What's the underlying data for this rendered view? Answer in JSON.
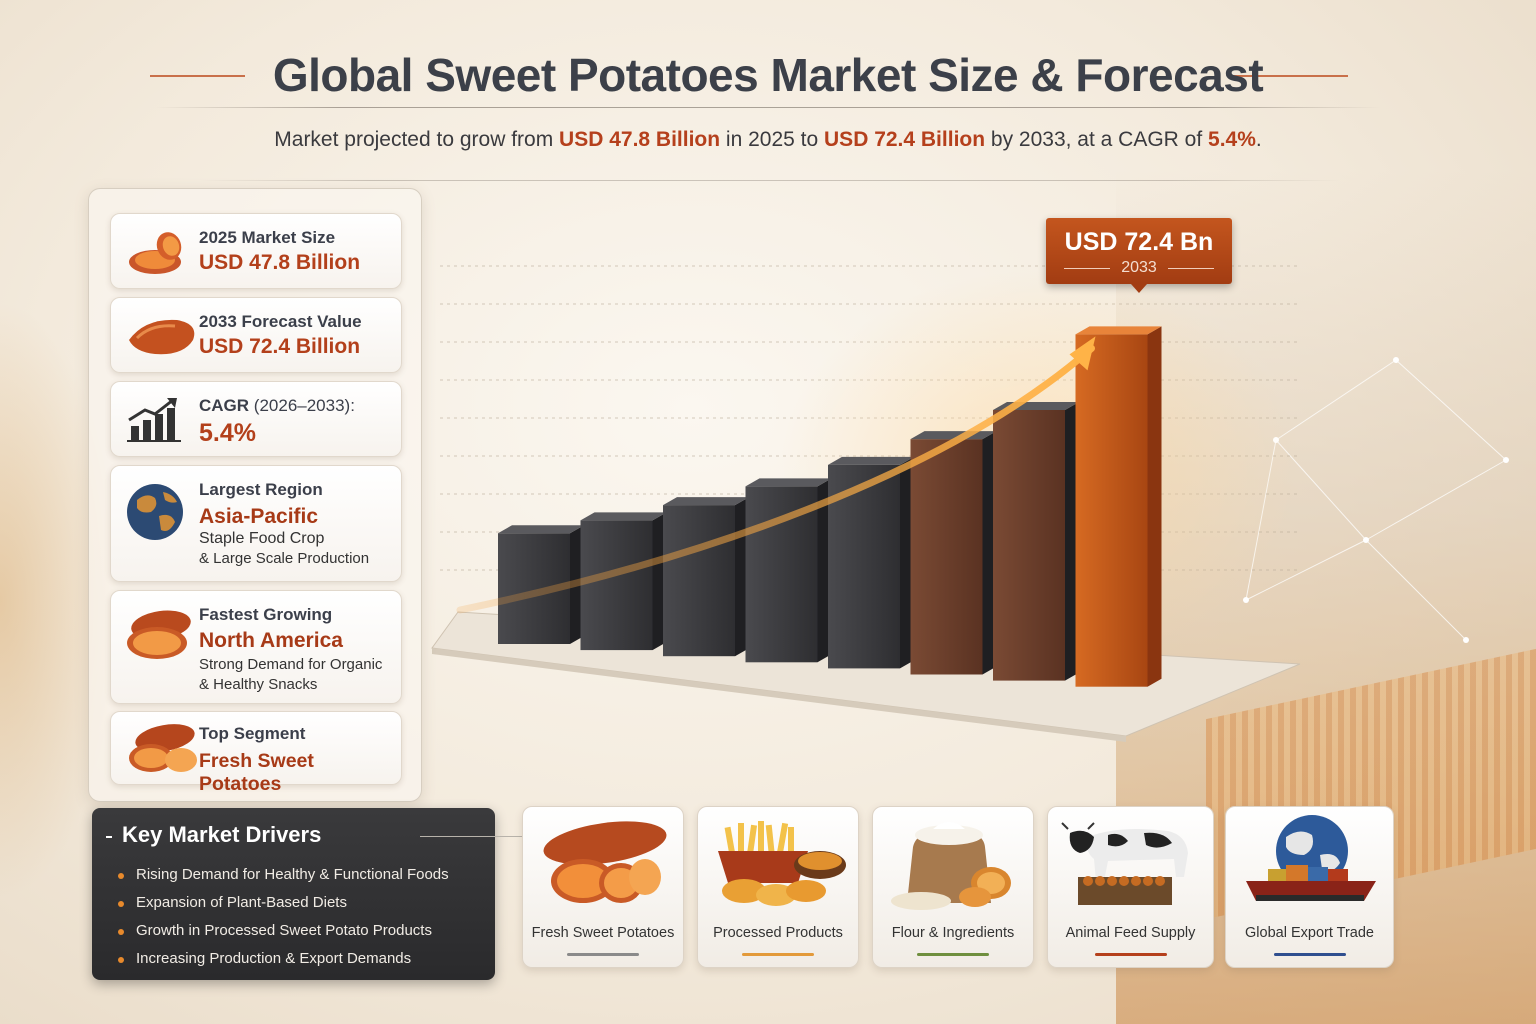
{
  "header": {
    "title": "Global Sweet Potatoes Market Size & Forecast",
    "subtitle_parts": [
      {
        "text": "Market projected to grow from ",
        "hl": false
      },
      {
        "text": "USD 47.8 Billion",
        "hl": true
      },
      {
        "text": " in 2025 to ",
        "hl": false
      },
      {
        "text": "USD 72.4 Billion",
        "hl": true
      },
      {
        "text": " by 2033, at a CAGR of ",
        "hl": false
      },
      {
        "text": "5.4%",
        "hl": true
      },
      {
        "text": ".",
        "hl": false
      }
    ]
  },
  "stats": {
    "market_2025": {
      "label": "2025 Market Size",
      "value": "USD 47.8 Billion"
    },
    "forecast_2033": {
      "label": "2033 Forecast Value",
      "value": "USD 72.4 Billion"
    },
    "cagr": {
      "label": "CAGR",
      "period": "(2026–2033):",
      "value": "5.4%"
    },
    "largest_region": {
      "label": "Largest Region",
      "value": "Asia-Pacific",
      "note1": "Staple Food Crop",
      "note2": "& Large Scale Production"
    },
    "fastest_growing": {
      "label": "Fastest Growing",
      "value": "North America",
      "note1": "Strong Demand for Organic",
      "note2": "& Healthy Snacks"
    },
    "top_segment": {
      "label": "Top Segment",
      "value": "Fresh Sweet Potatoes"
    }
  },
  "drivers": {
    "heading": "Key Market Drivers",
    "items": [
      "Rising Demand for Healthy & Functional Foods",
      "Expansion of Plant-Based Diets",
      "Growth in Processed Sweet Potato Products",
      "Increasing Production & Export Demands"
    ]
  },
  "segments": [
    {
      "label": "Fresh Sweet Potatoes",
      "icon": "sweet-potato-icon",
      "accent": "#8a8a8a"
    },
    {
      "label": "Processed Products",
      "icon": "fries-icon",
      "accent": "#e39a3a"
    },
    {
      "label": "Flour & Ingredients",
      "icon": "flour-sack-icon",
      "accent": "#6f8f3e"
    },
    {
      "label": "Animal Feed Supply",
      "icon": "cow-icon",
      "accent": "#b5401c"
    },
    {
      "label": "Global Export Trade",
      "icon": "globe-ship-icon",
      "accent": "#2f4f8f"
    }
  ],
  "colors": {
    "accent": "#b3401b",
    "bar_dark": "#3e3e42",
    "bar_orange": "#c4581e",
    "arrow": "#f39a2a"
  },
  "chart_data": {
    "type": "bar",
    "categories": [
      "",
      "",
      "",
      "",
      "",
      "",
      "",
      ""
    ],
    "values": [
      47.8,
      50.4,
      53.1,
      56.0,
      59.0,
      62.2,
      65.5,
      72.4
    ],
    "callout": {
      "value": "USD 72.4 Bn",
      "year": "2033"
    },
    "highlight_last": true,
    "trend_arrow": true,
    "xlabel": "",
    "ylabel": "",
    "grid": true
  }
}
